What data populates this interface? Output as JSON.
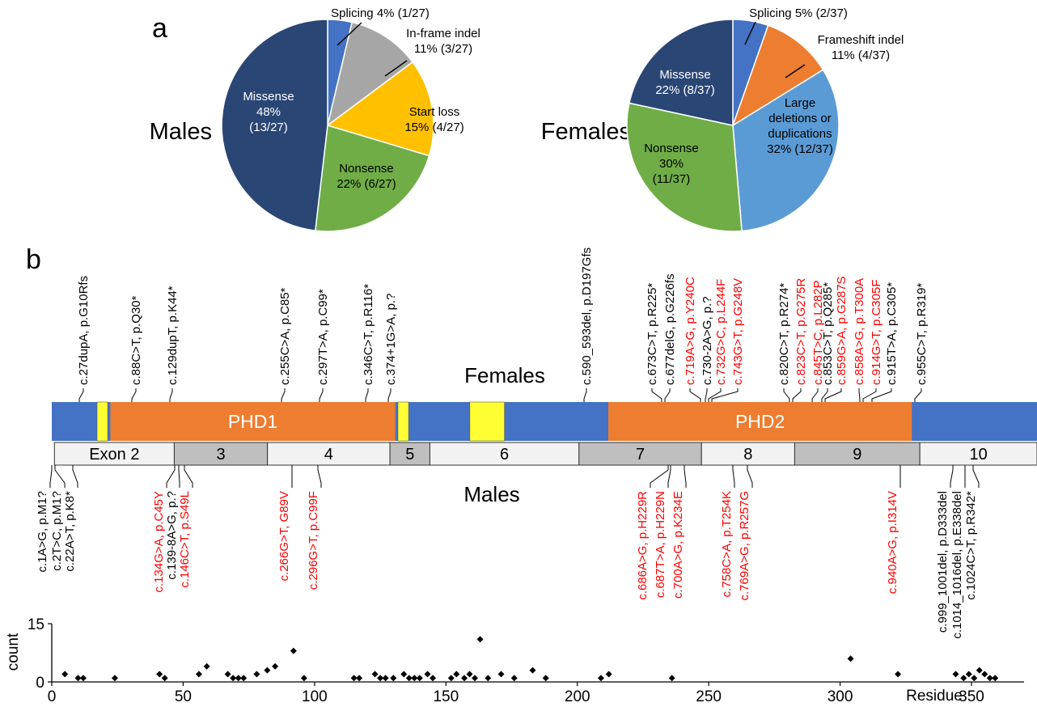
{
  "panel_labels": {
    "a": "a",
    "b": "b"
  },
  "colors": {
    "missense": "#2a4675",
    "splicing_m": "#4472c4",
    "inframe": "#a6a6a6",
    "startloss": "#ffc000",
    "nonsense": "#70ad47",
    "splicing_f": "#4472c4",
    "frameshift": "#ed7d31",
    "large": "#5b9bd5",
    "protein_blue": "#4472c4",
    "phd_orange": "#ed7d31",
    "yellow": "#ffff33",
    "exon_light": "#f2f2f2",
    "exon_dark": "#bfbfbf",
    "red": "#ff0000"
  },
  "males_pie": {
    "title": "Males",
    "slices": [
      {
        "key": "splicing",
        "value": 1,
        "color_key": "splicing_m",
        "label_lines": [
          "Splicing 4% (1/27)"
        ],
        "label_color": "#000000"
      },
      {
        "key": "inframe",
        "value": 3,
        "color_key": "inframe",
        "label_lines": [
          "In-frame indel",
          "11% (3/27)"
        ],
        "label_color": "#000000"
      },
      {
        "key": "startloss",
        "value": 4,
        "color_key": "startloss",
        "label_lines": [
          "Start loss",
          "15% (4/27)"
        ],
        "label_color": "#000000"
      },
      {
        "key": "nonsense",
        "value": 6,
        "color_key": "nonsense",
        "label_lines": [
          "Nonsense",
          "22% (6/27)"
        ],
        "label_color": "#000000"
      },
      {
        "key": "missense",
        "value": 13,
        "color_key": "missense",
        "label_lines": [
          "Missense",
          "48%",
          "(13/27)"
        ],
        "label_color": "#ffffff"
      }
    ]
  },
  "females_pie": {
    "title": "Females",
    "slices": [
      {
        "key": "splicing",
        "value": 2,
        "color_key": "splicing_f",
        "label_lines": [
          "Splicing 5% (2/37)"
        ],
        "label_color": "#000000"
      },
      {
        "key": "frameshift",
        "value": 4,
        "color_key": "frameshift",
        "label_lines": [
          "Frameshift indel",
          "11% (4/37)"
        ],
        "label_color": "#000000"
      },
      {
        "key": "large",
        "value": 12,
        "color_key": "large",
        "label_lines": [
          "Large",
          "deletions or",
          "duplications",
          "32% (12/37)"
        ],
        "label_color": "#000000"
      },
      {
        "key": "nonsense",
        "value": 11,
        "color_key": "nonsense",
        "label_lines": [
          "Nonsense",
          "30%",
          "(11/37)"
        ],
        "label_color": "#000000"
      },
      {
        "key": "missense",
        "value": 8,
        "color_key": "missense",
        "label_lines": [
          "Missense",
          "22% (8/37)"
        ],
        "label_color": "#ffffff"
      }
    ]
  },
  "protein": {
    "label_females": "Females",
    "label_males": "Males",
    "domains": [
      {
        "text": "PHD1",
        "start": 22,
        "end": 129
      },
      {
        "text": "PHD2",
        "start": 209,
        "end": 323
      }
    ],
    "yellow_regions": [
      {
        "start": 17,
        "end": 21
      },
      {
        "start": 130,
        "end": 134
      },
      {
        "start": 157,
        "end": 170
      }
    ],
    "exons": [
      {
        "label": "Exon 2",
        "start": 1,
        "end": 46,
        "shade": "light"
      },
      {
        "label": "3",
        "start": 46,
        "end": 81,
        "shade": "dark"
      },
      {
        "label": "4",
        "start": 81,
        "end": 127,
        "shade": "light"
      },
      {
        "label": "5",
        "start": 127,
        "end": 142,
        "shade": "dark"
      },
      {
        "label": "6",
        "start": 142,
        "end": 198,
        "shade": "light"
      },
      {
        "label": "7",
        "start": 198,
        "end": 244,
        "shade": "dark"
      },
      {
        "label": "8",
        "start": 244,
        "end": 279,
        "shade": "light"
      },
      {
        "label": "9",
        "start": 279,
        "end": 326,
        "shade": "dark"
      },
      {
        "label": "10",
        "start": 326,
        "end": 370,
        "shade": "light"
      }
    ]
  },
  "female_variants": [
    {
      "text": "c.27dupA, p.G10Rfs",
      "red": false
    },
    {
      "text": "c.88C>T, p.Q30*",
      "red": false
    },
    {
      "text": "c.129dupT, p.K44*",
      "red": false
    },
    {
      "text": "c.255C>A, p.C85*",
      "red": false
    },
    {
      "text": "c.297T>A, p.C99*",
      "red": false
    },
    {
      "text": "c.346C>T, p.R116*",
      "red": false
    },
    {
      "text": "c.374+1G>A, p.?",
      "red": false
    },
    {
      "text": "c.590_593del, p.D197Gfs",
      "red": false
    },
    {
      "text": "c.673C>T, p.R225*",
      "red": false
    },
    {
      "text": "c.677delG, p.G226fs",
      "red": false
    },
    {
      "text": "c.719A>G, p.Y240C",
      "red": true
    },
    {
      "text": "c.730-2A>G, p.?",
      "red": false
    },
    {
      "text": "c.732G>C, p.L244F",
      "red": true
    },
    {
      "text": "c.743G>T, p.G248V",
      "red": true
    },
    {
      "text": "c.820C>T, p.R274*",
      "red": false
    },
    {
      "text": "c.823C>T, p.G275R",
      "red": true
    },
    {
      "text": "c.845T>C, p.L282P",
      "red": true
    },
    {
      "text": "c.853C>T, p.Q285*",
      "red": false
    },
    {
      "text": "c.859G>A, p.G287S",
      "red": true
    },
    {
      "text": "c.858A>G, p.T300A",
      "red": true
    },
    {
      "text": "c.914G>T, p.C305F",
      "red": true
    },
    {
      "text": "c.915T>A, p.C305*",
      "red": false
    },
    {
      "text": "c.955C>T, p.R319*",
      "red": false
    }
  ],
  "male_variants": [
    {
      "text": "c.1A>G, p.M1?",
      "red": false
    },
    {
      "text": "c.2T>C, p.M1?",
      "red": false
    },
    {
      "text": "c.22A>T, p.K8*",
      "red": false
    },
    {
      "text": "c.134G>A, p.C45Y",
      "red": true
    },
    {
      "text": "c.139-8A>G, p.?",
      "red": false
    },
    {
      "text": "c.146C>T, p.S49L",
      "red": true
    },
    {
      "text": "c.266G>T, G89V",
      "red": true
    },
    {
      "text": "c.296G>T, p.C99F",
      "red": true
    },
    {
      "text": "c.686A>G, p.H229R",
      "red": true
    },
    {
      "text": "c.687T>A, p.H229N",
      "red": true
    },
    {
      "text": "c.700A>G, p.K234E",
      "red": true
    },
    {
      "text": "c.758C>A, p.T254K",
      "red": true
    },
    {
      "text": "c.769A>G, p.R257G",
      "red": true
    },
    {
      "text": "c.940A>G, p.I314V",
      "red": true
    },
    {
      "text": "c.999_1001del, p.D333del",
      "red": false
    },
    {
      "text": "c.1014_1016del, p.E338del",
      "red": false
    },
    {
      "text": "c.1024C>T, p.R342*",
      "red": false
    }
  ],
  "chart_data": {
    "type": "scatter",
    "title": "",
    "xlabel": "Residue",
    "ylabel": "count",
    "xlim": [
      0,
      370
    ],
    "ylim": [
      0,
      15
    ],
    "xticks": [
      0,
      50,
      100,
      150,
      200,
      250,
      300,
      350
    ],
    "yticks": [
      0,
      15
    ],
    "grid": false,
    "marker": "diamond",
    "x": [
      5,
      10,
      12,
      24,
      41,
      43,
      56,
      59,
      67,
      69,
      71,
      73,
      78,
      82,
      85,
      92,
      96,
      115,
      117,
      123,
      125,
      127,
      130,
      134,
      136,
      138,
      140,
      143,
      145,
      152,
      154,
      157,
      159,
      161,
      163,
      166,
      171,
      176,
      183,
      188,
      209,
      212,
      236,
      304,
      322,
      344,
      347,
      349,
      351,
      353,
      355,
      357,
      359
    ],
    "y": [
      2,
      1,
      1,
      1,
      2,
      1,
      2,
      4,
      2,
      1,
      1,
      1,
      2,
      3,
      4,
      8,
      1,
      1,
      1,
      2,
      1,
      1,
      1,
      2,
      1,
      1,
      1,
      2,
      1,
      1,
      2,
      1,
      2,
      1,
      11,
      1,
      2,
      1,
      3,
      1,
      1,
      2,
      1,
      6,
      2,
      2,
      1,
      2,
      1,
      3,
      2,
      1,
      1
    ]
  }
}
